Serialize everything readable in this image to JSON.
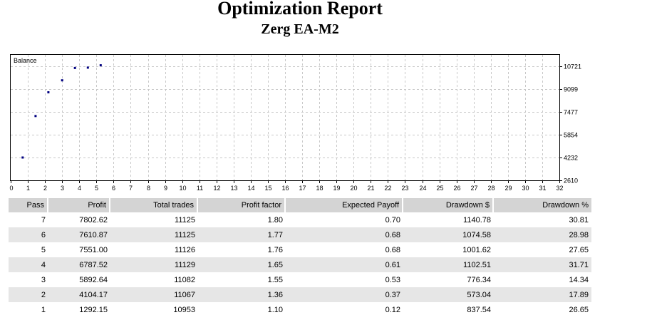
{
  "report": {
    "title": "Optimization Report",
    "subtitle": "Zerg EA-M2"
  },
  "chart_data": {
    "type": "scatter",
    "title": "",
    "series_label": "Balance",
    "xlim": [
      0,
      32
    ],
    "x_ticks": [
      0,
      1,
      2,
      3,
      4,
      5,
      6,
      7,
      8,
      9,
      10,
      11,
      12,
      13,
      14,
      15,
      16,
      17,
      18,
      19,
      20,
      21,
      22,
      23,
      24,
      25,
      26,
      27,
      28,
      29,
      30,
      31,
      32
    ],
    "ylim": [
      2610,
      11532
    ],
    "y_ticks": [
      2610,
      4232,
      5854,
      7477,
      9099,
      10721
    ],
    "y_axis_side": "right",
    "grid": true,
    "marker_color": "#000080",
    "points": [
      {
        "x": 0.7,
        "y": 4232
      },
      {
        "x": 1.45,
        "y": 7185
      },
      {
        "x": 2.2,
        "y": 8870
      },
      {
        "x": 3.0,
        "y": 9720
      },
      {
        "x": 3.75,
        "y": 10600
      },
      {
        "x": 4.5,
        "y": 10625
      },
      {
        "x": 5.25,
        "y": 10790
      }
    ]
  },
  "table": {
    "headers": [
      "Pass",
      "Profit",
      "Total trades",
      "Profit factor",
      "Expected Payoff",
      "Drawdown $",
      "Drawdown %"
    ],
    "rows": [
      [
        "7",
        "7802.62",
        "11125",
        "1.80",
        "0.70",
        "1140.78",
        "30.81"
      ],
      [
        "6",
        "7610.87",
        "11125",
        "1.77",
        "0.68",
        "1074.58",
        "28.98"
      ],
      [
        "5",
        "7551.00",
        "11126",
        "1.76",
        "0.68",
        "1001.62",
        "27.65"
      ],
      [
        "4",
        "6787.52",
        "11129",
        "1.65",
        "0.61",
        "1102.51",
        "31.71"
      ],
      [
        "3",
        "5892.64",
        "11082",
        "1.55",
        "0.53",
        "776.34",
        "14.34"
      ],
      [
        "2",
        "4104.17",
        "11067",
        "1.36",
        "0.37",
        "573.04",
        "17.89"
      ],
      [
        "1",
        "1292.15",
        "10953",
        "1.10",
        "0.12",
        "837.54",
        "26.65"
      ]
    ],
    "header_bg": "#d4d4d4",
    "alt_row_bg": "#e6e6e6"
  }
}
